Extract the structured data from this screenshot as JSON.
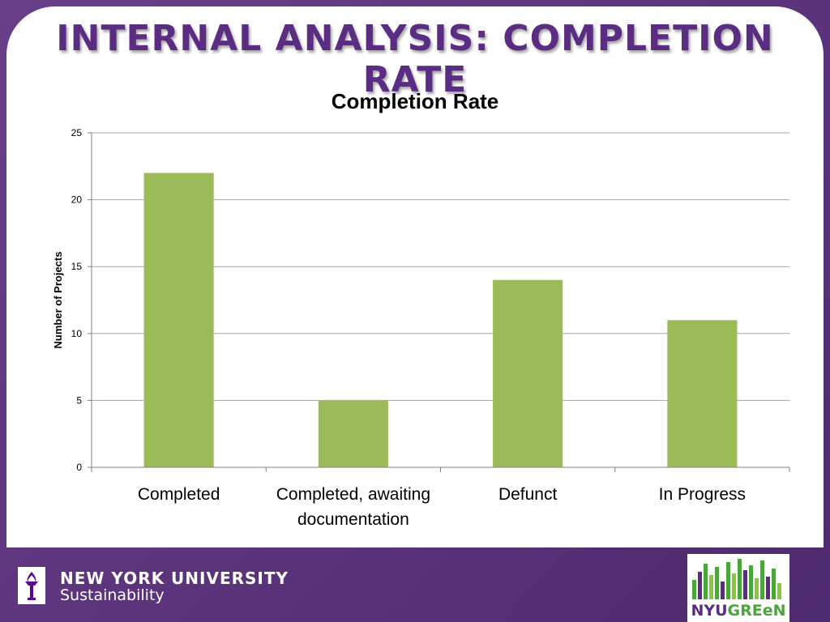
{
  "slide": {
    "title": "INTERNAL ANALYSIS: COMPLETION RATE"
  },
  "chart_data": {
    "type": "bar",
    "title": "Completion Rate",
    "xlabel": "",
    "ylabel": "Number of Projects",
    "ylim": [
      0,
      25
    ],
    "yticks": [
      0,
      5,
      10,
      15,
      20,
      25
    ],
    "grid": true,
    "categories": [
      "Completed",
      "Completed, awaiting documentation",
      "Defunct",
      "In Progress"
    ],
    "values": [
      22,
      5,
      14,
      11
    ],
    "bar_color": "#9bbb59"
  },
  "footer": {
    "org_line1": "NEW YORK UNIVERSITY",
    "org_line2": "Sustainability",
    "badge_nyu": "NYU",
    "badge_green": "GREeN"
  },
  "colors": {
    "frame": "#5b3279",
    "title": "#5b2d82",
    "grid": "#a6a6a6"
  }
}
